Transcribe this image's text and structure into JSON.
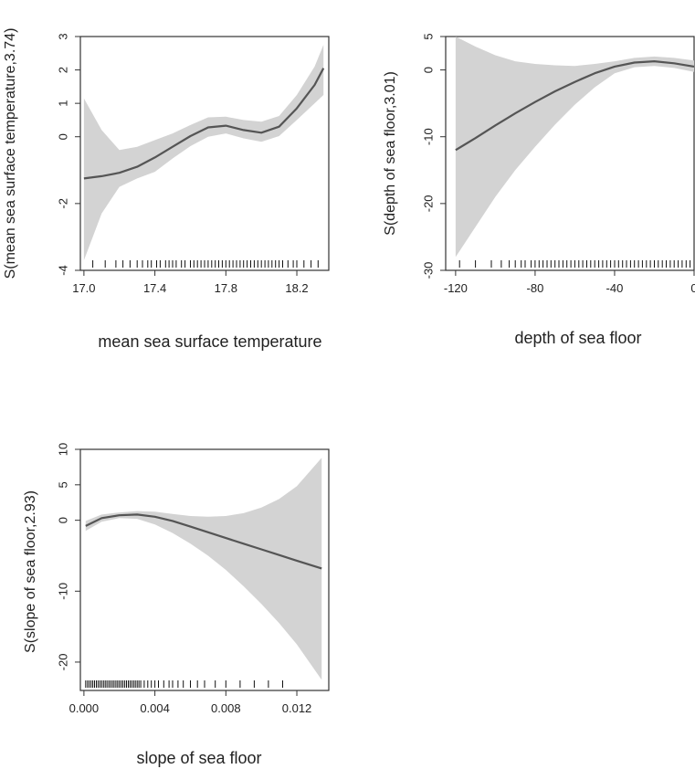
{
  "chart_data": [
    {
      "type": "line",
      "xlabel": "mean sea surface temperature",
      "ylabel": "S(mean sea surface temperature,3.74)",
      "xlim": [
        16.98,
        18.38
      ],
      "ylim": [
        -4,
        3
      ],
      "x_ticks": [
        "17.0",
        "17.4",
        "17.8",
        "18.2"
      ],
      "x_tick_values": [
        17.0,
        17.4,
        17.8,
        18.2
      ],
      "y_ticks": [
        "-4",
        "-2",
        "0",
        "1",
        "2",
        "3"
      ],
      "y_tick_values": [
        -4,
        -2,
        0,
        1,
        2,
        3
      ],
      "series": [
        {
          "x": [
            17.0,
            17.1,
            17.2,
            17.3,
            17.4,
            17.5,
            17.6,
            17.7,
            17.8,
            17.9,
            18.0,
            18.1,
            18.2,
            18.3,
            18.35
          ],
          "y": [
            -1.25,
            -1.18,
            -1.08,
            -0.9,
            -0.62,
            -0.3,
            0.02,
            0.28,
            0.33,
            0.2,
            0.12,
            0.3,
            0.85,
            1.55,
            2.05
          ],
          "lower": [
            -3.7,
            -2.3,
            -1.5,
            -1.25,
            -1.05,
            -0.65,
            -0.28,
            0.0,
            0.1,
            -0.05,
            -0.15,
            0.02,
            0.5,
            1.0,
            1.25
          ],
          "upper": [
            1.15,
            0.2,
            -0.4,
            -0.3,
            -0.1,
            0.1,
            0.35,
            0.58,
            0.6,
            0.5,
            0.45,
            0.62,
            1.25,
            2.1,
            2.75
          ]
        }
      ],
      "rug": [
        17.05,
        17.12,
        17.18,
        17.22,
        17.26,
        17.3,
        17.33,
        17.36,
        17.38,
        17.41,
        17.43,
        17.46,
        17.48,
        17.5,
        17.52,
        17.55,
        17.57,
        17.6,
        17.62,
        17.64,
        17.66,
        17.68,
        17.7,
        17.72,
        17.74,
        17.76,
        17.78,
        17.8,
        17.82,
        17.84,
        17.86,
        17.88,
        17.9,
        17.92,
        17.94,
        17.96,
        17.98,
        18.0,
        18.02,
        18.04,
        18.06,
        18.08,
        18.1,
        18.12,
        18.15,
        18.18,
        18.2,
        18.24,
        18.28,
        18.32
      ]
    },
    {
      "type": "line",
      "xlabel": "depth of sea floor",
      "ylabel": "S(depth of sea floor,3.01)",
      "xlim": [
        -125,
        0
      ],
      "ylim": [
        -30,
        5
      ],
      "x_ticks": [
        "-120",
        "-80",
        "-40",
        "0"
      ],
      "x_tick_values": [
        -120,
        -80,
        -40,
        0
      ],
      "y_ticks": [
        "-30",
        "-20",
        "-10",
        "0",
        "5"
      ],
      "y_tick_values": [
        -30,
        -20,
        -10,
        0,
        5
      ],
      "series": [
        {
          "x": [
            -120,
            -110,
            -100,
            -90,
            -80,
            -70,
            -60,
            -50,
            -40,
            -30,
            -20,
            -10,
            0
          ],
          "y": [
            -12,
            -10.2,
            -8.3,
            -6.5,
            -4.8,
            -3.2,
            -1.8,
            -0.5,
            0.5,
            1.1,
            1.3,
            1.0,
            0.5
          ],
          "lower": [
            -28,
            -23.5,
            -19,
            -15,
            -11.5,
            -8.2,
            -5.2,
            -2.6,
            -0.5,
            0.4,
            0.6,
            0.3,
            -0.3
          ],
          "upper": [
            5,
            3.5,
            2.2,
            1.3,
            0.9,
            0.7,
            0.6,
            0.9,
            1.3,
            1.8,
            2.0,
            1.8,
            1.4
          ]
        }
      ],
      "rug": [
        -118,
        -110,
        -102,
        -97,
        -93,
        -90,
        -87,
        -85,
        -82,
        -80,
        -78,
        -76,
        -74,
        -72,
        -70,
        -68,
        -66,
        -64,
        -62,
        -60,
        -58,
        -56,
        -54,
        -52,
        -50,
        -48,
        -46,
        -44,
        -42,
        -40,
        -38,
        -36,
        -34,
        -32,
        -30,
        -28,
        -26,
        -24,
        -22,
        -20,
        -18,
        -16,
        -14,
        -12,
        -10,
        -8,
        -6,
        -4,
        -2
      ]
    },
    {
      "type": "line",
      "xlabel": "slope of sea floor",
      "ylabel": "S(slope of sea floor,2.93)",
      "xlim": [
        -0.0002,
        0.0138
      ],
      "ylim": [
        -24,
        10
      ],
      "x_ticks": [
        "0.000",
        "0.004",
        "0.008",
        "0.012"
      ],
      "x_tick_values": [
        0.0,
        0.004,
        0.008,
        0.012
      ],
      "y_ticks": [
        "-20",
        "-10",
        "0",
        "5",
        "10"
      ],
      "y_tick_values": [
        -20,
        -10,
        0,
        5,
        10
      ],
      "series": [
        {
          "x": [
            0.0001,
            0.001,
            0.002,
            0.003,
            0.004,
            0.005,
            0.006,
            0.007,
            0.008,
            0.009,
            0.01,
            0.011,
            0.012,
            0.0134
          ],
          "y": [
            -0.8,
            0.3,
            0.7,
            0.8,
            0.5,
            -0.1,
            -0.9,
            -1.7,
            -2.5,
            -3.3,
            -4.1,
            -4.9,
            -5.7,
            -6.8
          ],
          "lower": [
            -1.5,
            -0.2,
            0.3,
            0.2,
            -0.6,
            -1.8,
            -3.3,
            -5.0,
            -7.0,
            -9.3,
            -11.8,
            -14.5,
            -17.5,
            -22.5
          ],
          "upper": [
            -0.1,
            0.8,
            1.1,
            1.3,
            1.2,
            0.9,
            0.6,
            0.5,
            0.6,
            1.0,
            1.8,
            3.0,
            4.8,
            8.8
          ]
        }
      ],
      "rug": [
        0.0001,
        0.0002,
        0.0003,
        0.0004,
        0.0005,
        0.0006,
        0.0007,
        0.0008,
        0.0009,
        0.001,
        0.0011,
        0.0012,
        0.0013,
        0.0014,
        0.0015,
        0.0016,
        0.0017,
        0.0018,
        0.0019,
        0.002,
        0.0021,
        0.0022,
        0.0023,
        0.0024,
        0.0025,
        0.0026,
        0.0027,
        0.0028,
        0.0029,
        0.003,
        0.0031,
        0.0032,
        0.0034,
        0.0036,
        0.0038,
        0.004,
        0.0042,
        0.0045,
        0.0048,
        0.005,
        0.0053,
        0.0056,
        0.006,
        0.0064,
        0.0068,
        0.0074,
        0.008,
        0.0088,
        0.0096,
        0.0104,
        0.0112
      ]
    }
  ]
}
